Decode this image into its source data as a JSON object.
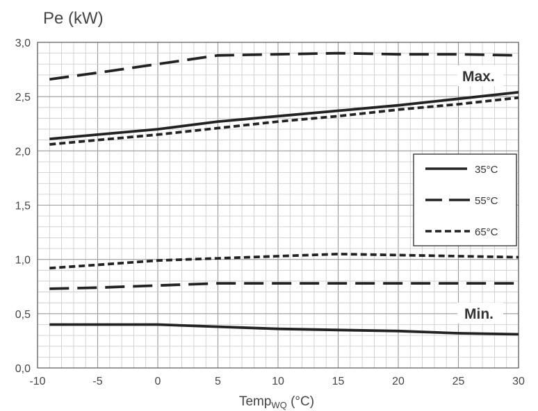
{
  "chart_data": {
    "type": "line",
    "ylabel": "Pe (kW)",
    "xlabel": {
      "main": "Temp",
      "sub": "WQ",
      "unit": " (°C)"
    },
    "xlim": [
      -10,
      30
    ],
    "ylim": [
      0,
      3
    ],
    "x_ticks": [
      -10,
      -5,
      0,
      5,
      10,
      15,
      20,
      25,
      30
    ],
    "y_ticks": [
      0.0,
      0.5,
      1.0,
      1.5,
      2.0,
      2.5,
      3.0
    ],
    "y_tick_labels": [
      "0,0",
      "0,5",
      "1,0",
      "1,5",
      "2,0",
      "2,5",
      "3,0"
    ],
    "x_tick_labels": [
      "-10",
      "-5",
      "0",
      "5",
      "10",
      "15",
      "20",
      "25",
      "30"
    ],
    "grid": true,
    "legend_position": "right",
    "legend": [
      {
        "label": "35°C",
        "style": "solid"
      },
      {
        "label": "55°C",
        "style": "long-dash"
      },
      {
        "label": "65°C",
        "style": "short-dash"
      }
    ],
    "annotations": [
      {
        "text": "Max.",
        "x": 27,
        "y": 2.7
      },
      {
        "text": "Min.",
        "x": 27,
        "y": 0.52
      }
    ],
    "series": [
      {
        "group": "max",
        "style": "long-dash",
        "x": [
          -9,
          -5,
          0,
          5,
          10,
          15,
          20,
          25,
          30
        ],
        "y": [
          2.66,
          2.72,
          2.8,
          2.88,
          2.89,
          2.9,
          2.89,
          2.89,
          2.88
        ]
      },
      {
        "group": "max",
        "style": "solid",
        "x": [
          -9,
          -5,
          0,
          5,
          10,
          15,
          20,
          25,
          30
        ],
        "y": [
          2.11,
          2.15,
          2.2,
          2.27,
          2.32,
          2.37,
          2.42,
          2.48,
          2.54
        ]
      },
      {
        "group": "max",
        "style": "short-dash",
        "x": [
          -9,
          -5,
          0,
          5,
          10,
          15,
          20,
          25,
          30
        ],
        "y": [
          2.06,
          2.1,
          2.15,
          2.21,
          2.27,
          2.32,
          2.38,
          2.43,
          2.49
        ]
      },
      {
        "group": "min",
        "style": "short-dash",
        "x": [
          -9,
          -5,
          0,
          5,
          10,
          15,
          20,
          25,
          30
        ],
        "y": [
          0.92,
          0.95,
          0.99,
          1.01,
          1.03,
          1.05,
          1.04,
          1.03,
          1.02
        ]
      },
      {
        "group": "min",
        "style": "long-dash",
        "x": [
          -9,
          -5,
          0,
          5,
          10,
          15,
          20,
          25,
          30
        ],
        "y": [
          0.73,
          0.74,
          0.76,
          0.78,
          0.78,
          0.78,
          0.78,
          0.78,
          0.78
        ]
      },
      {
        "group": "min",
        "style": "solid",
        "x": [
          -9,
          -5,
          0,
          5,
          10,
          15,
          20,
          25,
          30
        ],
        "y": [
          0.4,
          0.4,
          0.4,
          0.38,
          0.36,
          0.35,
          0.34,
          0.32,
          0.31
        ]
      }
    ]
  }
}
